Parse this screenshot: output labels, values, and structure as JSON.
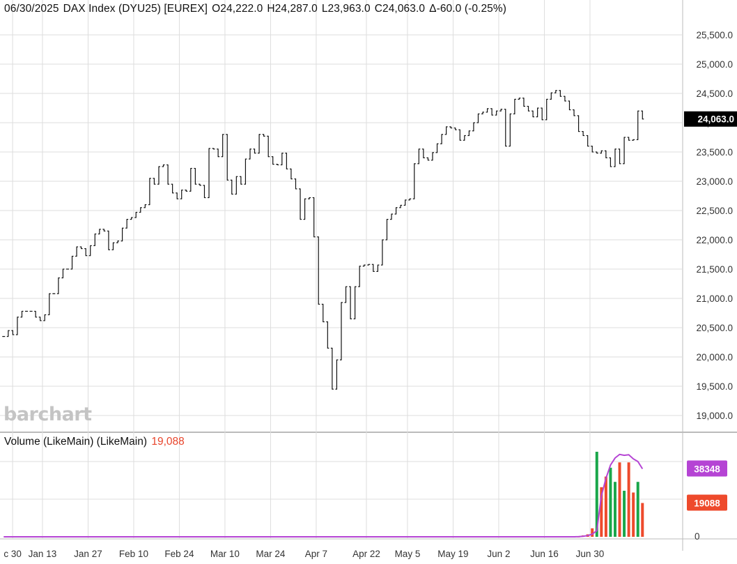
{
  "header": {
    "date": "06/30/2025",
    "symbol": "DAX Index (DYU25) [EUREX]",
    "open": "O24,222.0",
    "high": "H24,287.0",
    "low": "L23,963.0",
    "close": "C24,063.0",
    "change": "Δ-60.0 (-0.25%)"
  },
  "watermark": "barchart",
  "volume_panel": {
    "title": "Volume (LikeMain)  (LikeMain)",
    "value": "19,088"
  },
  "colors": {
    "up_volume": "#1aa64a",
    "down_volume": "#ee4a2c",
    "moving_average": "#b544d4",
    "grid": "#dddddd",
    "price_tag_bg": "#000000",
    "ma_tag_bg": "#b544d4",
    "vol_tag_bg": "#ee4a2c"
  },
  "chart_data": [
    {
      "type": "ohlc",
      "name": "DAX Index (DYU25)",
      "x_ticks": [
        "c 30",
        "Jan 13",
        "Jan 27",
        "Feb 10",
        "Feb 24",
        "Mar 10",
        "Mar 24",
        "Apr 7",
        "Apr 22",
        "May 5",
        "May 19",
        "Jun 2",
        "Jun 16",
        "Jun 30"
      ],
      "y_ticks": [
        "25,500.0",
        "25,000.0",
        "24,500.0",
        "24,000.0",
        "23,500.0",
        "23,000.0",
        "22,500.0",
        "22,000.0",
        "21,500.0",
        "21,000.0",
        "20,500.0",
        "20,000.0",
        "19,500.0",
        "19,000.0"
      ],
      "ylim": [
        18850,
        25550
      ],
      "last_price_label": "24,063.0",
      "close": [
        20350,
        20450,
        20380,
        20680,
        20780,
        20780,
        20780,
        20680,
        20620,
        20720,
        21080,
        21080,
        21350,
        21500,
        21500,
        21720,
        21880,
        21850,
        21730,
        21900,
        22100,
        22180,
        22150,
        21830,
        21950,
        21980,
        22200,
        22350,
        22380,
        22470,
        22550,
        22600,
        23050,
        22950,
        23250,
        23280,
        22950,
        22800,
        22700,
        22850,
        22830,
        23220,
        22950,
        22930,
        22720,
        23560,
        23550,
        23420,
        23800,
        23020,
        22780,
        23080,
        22950,
        23380,
        23550,
        23480,
        23800,
        23770,
        23420,
        23290,
        23280,
        23480,
        23210,
        23040,
        22870,
        22350,
        22700,
        22720,
        22050,
        20900,
        20600,
        20150,
        19450,
        19950,
        20930,
        21200,
        20650,
        21200,
        21550,
        21570,
        21580,
        21460,
        21570,
        22000,
        22350,
        22440,
        22550,
        22590,
        22680,
        22700,
        23300,
        23550,
        23400,
        23360,
        23490,
        23640,
        23800,
        23930,
        23910,
        23880,
        23700,
        23780,
        23860,
        24000,
        24150,
        24180,
        24240,
        24130,
        24200,
        24230,
        23600,
        24150,
        24400,
        24420,
        24280,
        24200,
        24100,
        24250,
        24050,
        24400,
        24510,
        24550,
        24450,
        24370,
        24220,
        24120,
        23850,
        23780,
        23600,
        23500,
        23480,
        23520,
        23400,
        23250,
        23550,
        23300,
        23750,
        23700,
        23710,
        24200,
        24063
      ]
    },
    {
      "type": "bar",
      "name": "Volume (LikeMain)",
      "value_label": "19088",
      "ma_label": "38348",
      "y_ticks": [
        "0"
      ],
      "ylim": [
        0,
        48000
      ],
      "values": [
        40,
        40,
        60,
        100,
        800,
        1400,
        4800,
        48000,
        28000,
        34000,
        39000,
        31000,
        42000,
        26000,
        42000,
        25000,
        31000,
        19088
      ],
      "up": [
        1,
        0,
        1,
        0,
        0,
        0,
        0,
        1,
        0,
        0,
        1,
        1,
        0,
        1,
        0,
        0,
        1,
        0
      ],
      "ma": [
        0,
        0,
        0,
        0,
        0,
        0,
        0,
        0,
        0,
        0,
        0,
        0,
        0,
        0,
        0,
        0,
        0,
        0,
        0,
        0,
        0,
        0,
        0,
        0,
        0,
        0,
        0,
        0,
        0,
        0,
        0,
        0,
        0,
        0,
        0,
        0,
        0,
        0,
        0,
        0,
        0,
        0,
        0,
        0,
        0,
        0,
        0,
        0,
        0,
        0,
        0,
        0,
        0,
        0,
        0,
        0,
        0,
        0,
        0,
        0,
        0,
        0,
        0,
        0,
        0,
        0,
        0,
        0,
        0,
        0,
        0,
        0,
        0,
        0,
        0,
        0,
        0,
        0,
        0,
        0,
        0,
        0,
        0,
        0,
        0,
        0,
        0,
        0,
        0,
        0,
        0,
        0,
        0,
        0,
        0,
        0,
        0,
        0,
        0,
        0,
        0,
        0,
        0,
        0,
        0,
        0,
        0,
        0,
        0,
        0,
        0,
        0,
        0,
        0,
        0,
        0,
        0,
        0,
        0,
        0,
        0,
        0,
        0,
        0,
        0,
        0,
        100,
        300,
        700,
        1500,
        3500,
        23000,
        33000,
        40500,
        44500,
        46500,
        46000,
        46300,
        44000,
        42500,
        38348
      ]
    }
  ]
}
